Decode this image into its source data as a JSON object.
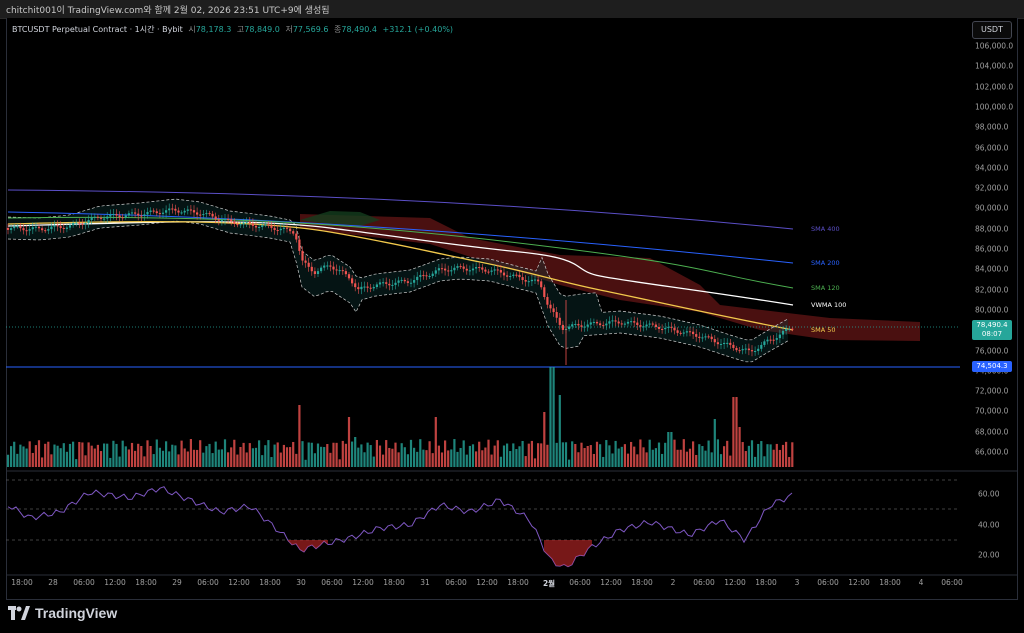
{
  "header": {
    "caption": "chitchit001이 TradingView.com와 함께 2월 02, 2026 23:51 UTC+9에 생성됨"
  },
  "legend": {
    "symbol": "BTCUSDT Perpetual Contract · 1시간 · Bybit",
    "open_key": "시",
    "open": "78,178.3",
    "high_key": "고",
    "high": "78,849.0",
    "low_key": "저",
    "low": "77,569.6",
    "close_key": "종",
    "close": "78,490.4",
    "change": "+312.1 (+0.40%)"
  },
  "currency_button": "USDT",
  "price_axis": [
    "106,000.0",
    "104,000.0",
    "102,000.0",
    "100,000.0",
    "98,000.0",
    "96,000.0",
    "94,000.0",
    "92,000.0",
    "90,000.0",
    "88,000.0",
    "86,000.0",
    "84,000.0",
    "82,000.0",
    "80,000.0",
    "78,000.0",
    "76,000.0",
    "74,000.0",
    "72,000.0",
    "70,000.0",
    "68,000.0",
    "66,000.0"
  ],
  "price_tags": {
    "last_price": "78,490.4",
    "countdown": "08:07",
    "support_level": "74,504.3"
  },
  "rsi_axis": [
    "60.00",
    "40.00",
    "20.00"
  ],
  "time_axis": [
    "18:00",
    "28",
    "06:00",
    "12:00",
    "18:00",
    "29",
    "06:00",
    "12:00",
    "18:00",
    "30",
    "06:00",
    "12:00",
    "18:00",
    "31",
    "06:00",
    "12:00",
    "18:00",
    "2월",
    "06:00",
    "12:00",
    "18:00",
    "2",
    "06:00",
    "12:00",
    "18:00",
    "3",
    "06:00",
    "12:00",
    "18:00",
    "4",
    "06:00"
  ],
  "indicators": {
    "sma400": "SMA 400",
    "sma200": "SMA 200",
    "sma120": "SMA 120",
    "vwma100": "VWMA 100",
    "sma50": "SMA 50"
  },
  "colors": {
    "bull": "#26a69a",
    "bear": "#ef5350",
    "sma400": "#5b4fc7",
    "sma200": "#2962ff",
    "sma120": "#4caf50",
    "vwma100": "#ffffff",
    "sma50": "#f2c94c",
    "rsi": "#7e57c2",
    "support": "#2962ff"
  },
  "brand": {
    "name": "TradingView"
  }
}
